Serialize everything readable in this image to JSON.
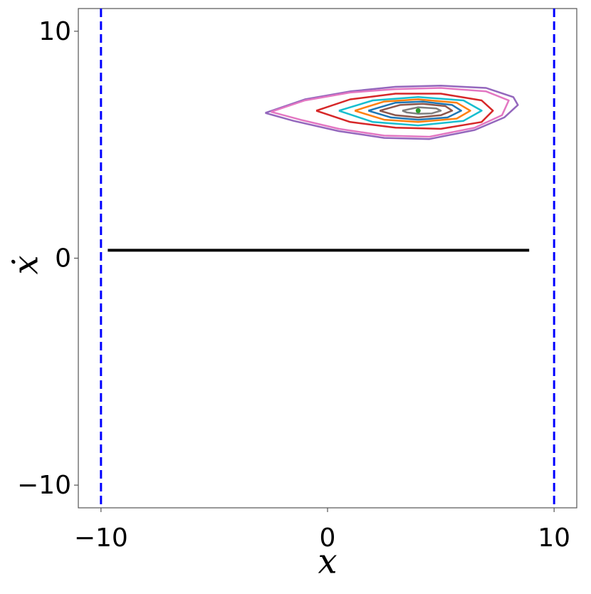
{
  "chart_data": {
    "type": "line",
    "xlabel": "x",
    "ylabel": "ẋ",
    "xlim": [
      -11,
      11
    ],
    "ylim": [
      -11,
      11
    ],
    "xticks": [
      {
        "value": -10,
        "label": "−10"
      },
      0,
      10
    ],
    "yticks": [
      {
        "value": -10,
        "label": "−10"
      },
      0,
      10
    ],
    "vlines": [
      {
        "x": -10,
        "color": "#0000ff"
      },
      {
        "x": 10,
        "color": "#0000ff"
      }
    ],
    "hline": {
      "y": 0.35,
      "xmin": -9.7,
      "xmax": 8.9,
      "color": "#000000"
    },
    "series": [
      {
        "color": "#9467bd",
        "x": [
          -2.75,
          -1,
          1,
          3,
          5,
          7,
          8.2,
          8.4,
          7.8,
          6.5,
          4.5,
          2.5,
          0.5,
          -1.5,
          -2.75
        ],
        "y": [
          6.4,
          7.0,
          7.35,
          7.55,
          7.6,
          7.5,
          7.1,
          6.75,
          6.2,
          5.65,
          5.25,
          5.3,
          5.6,
          6.05,
          6.4
        ]
      },
      {
        "color": "#e377c2",
        "x": [
          -2.5,
          -1,
          1,
          3,
          5,
          7,
          8,
          7.7,
          6.5,
          4.5,
          2.5,
          0.5,
          -1.2,
          -2.5
        ],
        "y": [
          6.45,
          6.95,
          7.3,
          7.45,
          7.5,
          7.35,
          6.95,
          6.3,
          5.75,
          5.35,
          5.4,
          5.7,
          6.1,
          6.45
        ]
      },
      {
        "color": "#d62728",
        "x": [
          -0.5,
          1,
          3,
          5,
          6.8,
          7.3,
          6.8,
          5,
          3,
          1,
          -0.5
        ],
        "y": [
          6.5,
          7.0,
          7.25,
          7.25,
          6.95,
          6.5,
          6.0,
          5.7,
          5.75,
          6.0,
          6.5
        ]
      },
      {
        "color": "#17becf",
        "x": [
          0.5,
          2,
          4,
          6,
          6.8,
          6,
          4,
          2,
          0.5
        ],
        "y": [
          6.5,
          6.95,
          7.1,
          6.95,
          6.5,
          6.05,
          5.85,
          6.0,
          6.5
        ]
      },
      {
        "color": "#ff7f0e",
        "x": [
          1.2,
          2.5,
          4,
          5.7,
          6.3,
          5.7,
          4,
          2.5,
          1.2
        ],
        "y": [
          6.5,
          6.9,
          7.0,
          6.85,
          6.5,
          6.15,
          6.0,
          6.1,
          6.5
        ]
      },
      {
        "color": "#1f77b4",
        "x": [
          1.8,
          3,
          4.2,
          5.5,
          5.9,
          5.3,
          4.0,
          2.8,
          1.8
        ],
        "y": [
          6.5,
          6.85,
          6.9,
          6.75,
          6.5,
          6.2,
          6.1,
          6.2,
          6.5
        ]
      },
      {
        "color": "#8c564b",
        "x": [
          2.3,
          3.2,
          4.2,
          5.2,
          5.5,
          5,
          4,
          3,
          2.3
        ],
        "y": [
          6.5,
          6.75,
          6.8,
          6.7,
          6.5,
          6.3,
          6.2,
          6.3,
          6.5
        ]
      },
      {
        "color": "#7f7f7f",
        "x": [
          3.3,
          4,
          4.8,
          5.0,
          4.6,
          4,
          3.5,
          3.3
        ],
        "y": [
          6.5,
          6.65,
          6.6,
          6.5,
          6.38,
          6.36,
          6.42,
          6.5
        ]
      },
      {
        "color": "#2ca02c",
        "x": [
          4.0
        ],
        "y": [
          6.5
        ]
      }
    ]
  }
}
